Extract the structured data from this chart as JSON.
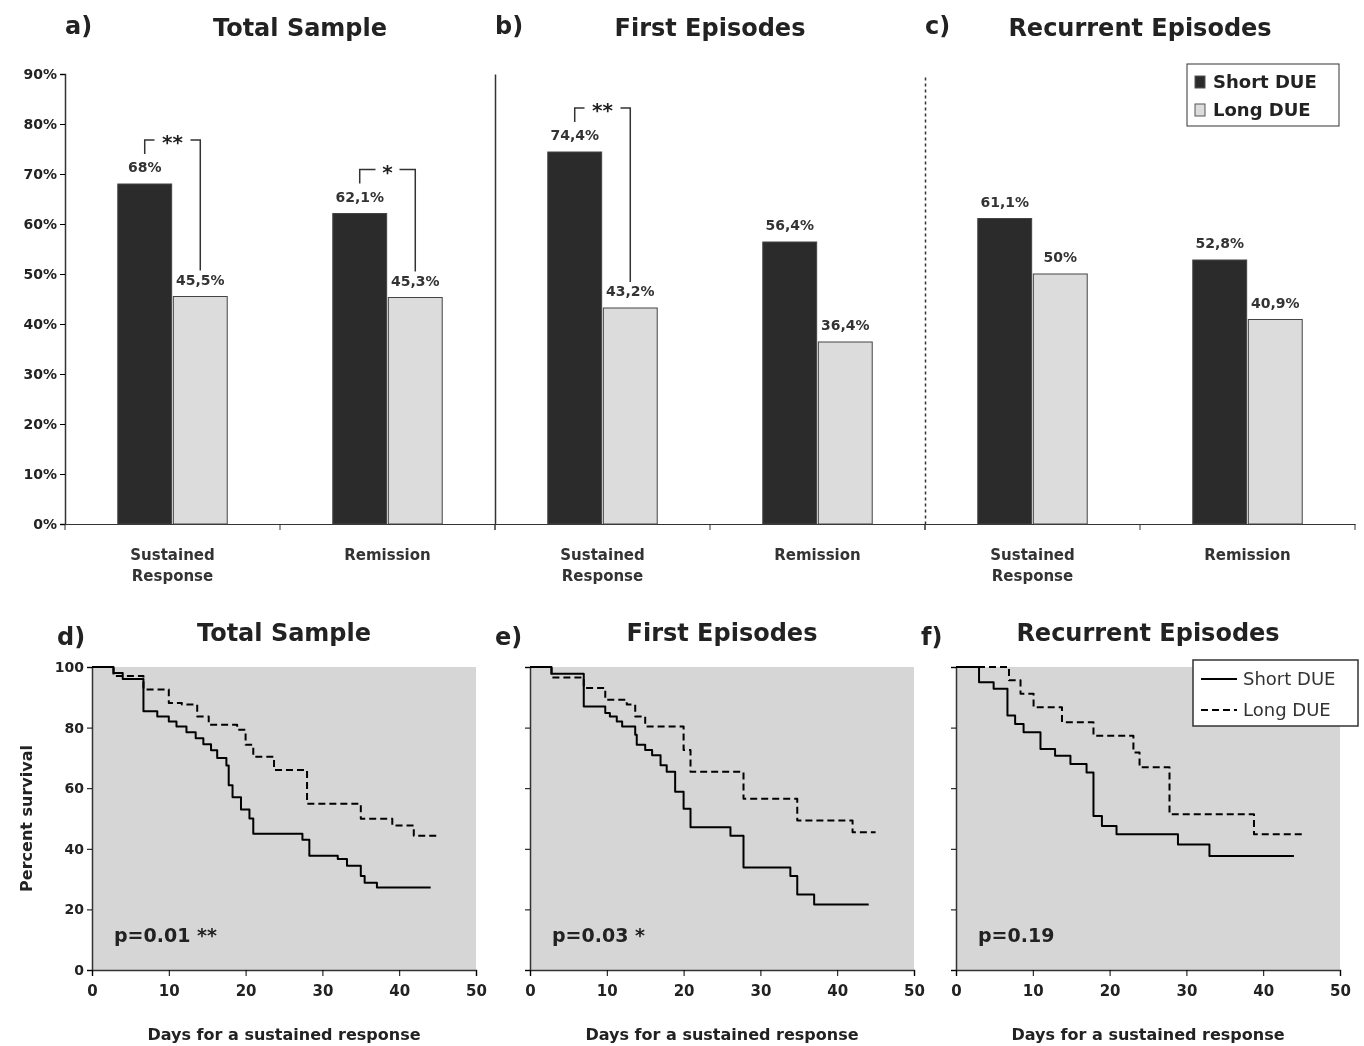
{
  "chart_data": [
    {
      "type": "bar",
      "title": "Total Sample",
      "categories": [
        "Sustained Response",
        "Remission"
      ],
      "series": [
        {
          "color": "#2b2b2b",
          "values": [
            68,
            62.1
          ],
          "value_labels": [
            "68%",
            "62,1%"
          ]
        },
        {
          "color": "#dcdcdc",
          "values": [
            45.5,
            45.3
          ],
          "value_labels": [
            "45,5%",
            "45,3%"
          ]
        }
      ],
      "ylim": [
        0,
        90
      ],
      "yticks": [
        {
          "value": 0,
          "label": "0%"
        },
        {
          "value": 10,
          "label": "10%"
        },
        {
          "value": 20,
          "label": "20%"
        },
        {
          "value": 30,
          "label": "30%"
        },
        {
          "value": 40,
          "label": "40%"
        },
        {
          "value": 50,
          "label": "50%"
        },
        {
          "value": 60,
          "label": "60%"
        },
        {
          "value": 70,
          "label": "70%"
        },
        {
          "value": 80,
          "label": "80%"
        },
        {
          "value": 90,
          "label": "90%"
        }
      ],
      "annotations": [
        "a)",
        "**",
        "*"
      ]
    },
    {
      "type": "bar",
      "title": "First Episodes",
      "categories": [
        "Sustained Response",
        "Remission"
      ],
      "series": [
        {
          "color": "#2b2b2b",
          "values": [
            74.4,
            56.4
          ],
          "value_labels": [
            "74,4%",
            "56,4%"
          ]
        },
        {
          "color": "#dcdcdc",
          "values": [
            43.2,
            36.4
          ],
          "value_labels": [
            "43,2%",
            "36,4%"
          ]
        }
      ],
      "ylim": [
        0,
        90
      ],
      "tick_labels": "x",
      "annotations": [
        "b)",
        "**"
      ]
    },
    {
      "type": "bar",
      "title": "Recurrent Episodes",
      "categories": [
        "Sustained Response",
        "Remission"
      ],
      "series": [
        {
          "name": "Short DUE",
          "color": "#2b2b2b",
          "values": [
            61.1,
            52.8
          ],
          "value_labels": [
            "61,1%",
            "52,8%"
          ]
        },
        {
          "name": "Long DUE",
          "color": "#dcdcdc",
          "values": [
            50,
            40.9
          ],
          "value_labels": [
            "50%",
            "40,9%"
          ]
        }
      ],
      "ylim": [
        0,
        90
      ],
      "tick_labels": "x",
      "legend": "top right",
      "annotations": [
        "c)"
      ]
    },
    {
      "type": "step",
      "title": "Total Sample",
      "xlabel": "Days for a sustained response",
      "ylabel": "Percent survival",
      "series": [
        {
          "color": "#000000",
          "line_style": "solid",
          "x": [
            0,
            2.8,
            4,
            6.7,
            8.5,
            10,
            11,
            12.3,
            13.5,
            14.5,
            15.5,
            16.3,
            17.5,
            17.8,
            18.3,
            19.4,
            20.5,
            21,
            27.4,
            28.3,
            32,
            33.2,
            35,
            35.5,
            37.1,
            44.1
          ],
          "values": [
            100,
            98,
            96,
            85.4,
            83.7,
            82,
            80.4,
            78.5,
            76.5,
            74.5,
            72.5,
            70,
            67.5,
            61,
            57,
            53,
            50,
            45,
            43,
            37.7,
            36.6,
            34.4,
            31,
            28.8,
            27.2,
            27.2
          ]
        },
        {
          "color": "#000000",
          "line_style": "dashed",
          "x": [
            0,
            2.8,
            6.7,
            10,
            11.7,
            13.7,
            15.2,
            18.9,
            20,
            21,
            23.7,
            28,
            35,
            39.1,
            41.9,
            45
          ],
          "values": [
            100,
            97,
            92.6,
            88.1,
            87.6,
            83.7,
            80.9,
            79.3,
            74.3,
            70.4,
            66,
            54.9,
            49.9,
            47.7,
            44.3,
            44.3
          ]
        }
      ],
      "xlim": [
        0,
        50
      ],
      "xticks": [
        0,
        10,
        20,
        30,
        40,
        50
      ],
      "ylim": [
        0,
        100
      ],
      "yticks": [
        0,
        20,
        40,
        60,
        80,
        100
      ],
      "marker": "none",
      "annotations": [
        "d)",
        "p=0.01 **"
      ]
    },
    {
      "type": "step",
      "title": "First Episodes",
      "xlabel": "Days for a sustained response",
      "series": [
        {
          "color": "#000000",
          "line_style": "solid",
          "x": [
            0,
            2.8,
            7,
            9.8,
            10.4,
            11.3,
            12,
            13.7,
            13.9,
            15,
            15.9,
            17,
            17.8,
            18.9,
            20,
            20.9,
            26.1,
            27.8,
            33.9,
            34.8,
            37,
            44.1
          ],
          "values": [
            100,
            97.8,
            87,
            84.8,
            83.7,
            82,
            80.4,
            77.6,
            74.3,
            72.6,
            70.9,
            67.6,
            65.4,
            58.8,
            53.2,
            47.1,
            44.3,
            33.8,
            31,
            24.9,
            21.6,
            21.6
          ]
        },
        {
          "color": "#000000",
          "line_style": "dashed",
          "x": [
            0,
            2.8,
            7,
            9.8,
            12.6,
            13.7,
            15,
            20,
            20.9,
            27.8,
            34.8,
            42,
            45
          ],
          "values": [
            100,
            96.5,
            93.1,
            89.2,
            87.6,
            83.7,
            80.4,
            72.6,
            65.4,
            56.5,
            49.3,
            45.5,
            45.5
          ]
        }
      ],
      "xlim": [
        0,
        50
      ],
      "xticks": [
        0,
        10,
        20,
        30,
        40,
        50
      ],
      "ylim": [
        0,
        100
      ],
      "yticks": [
        0,
        20,
        40,
        60,
        80,
        100
      ],
      "tick_labels": "x",
      "marker": "none",
      "annotations": [
        "e)",
        "p=0.03 *"
      ]
    },
    {
      "type": "step",
      "title": "Recurrent Episodes",
      "xlabel": "Days for a sustained response",
      "series": [
        {
          "name": "Short DUE",
          "color": "#000000",
          "line_style": "solid",
          "x": [
            0,
            3,
            4.9,
            6.7,
            7.7,
            8.8,
            11,
            12.9,
            14.9,
            17,
            17.9,
            19,
            20.9,
            28.9,
            33,
            44
          ],
          "values": [
            100,
            95,
            92.8,
            84,
            81.2,
            78.5,
            72.9,
            70.7,
            68,
            65.2,
            50.8,
            47.5,
            44.8,
            41.4,
            37.6,
            37.6
          ]
        },
        {
          "name": "Long DUE",
          "color": "#000000",
          "line_style": "dashed",
          "x": [
            0,
            6.9,
            8.4,
            10.1,
            13.8,
            17.9,
            23.1,
            23.9,
            27.8,
            38.8,
            45.1
          ],
          "values": [
            100,
            95.6,
            91.2,
            86.7,
            81.8,
            77.3,
            71.8,
            66.9,
            51.4,
            44.8,
            44.8
          ]
        }
      ],
      "xlim": [
        0,
        50
      ],
      "xticks": [
        0,
        10,
        20,
        30,
        40,
        50
      ],
      "ylim": [
        0,
        100
      ],
      "yticks": [
        0,
        20,
        40,
        60,
        80,
        100
      ],
      "tick_labels": "x",
      "marker": "none",
      "legend": "top right",
      "annotations": [
        "f)",
        "p=0.19"
      ]
    }
  ]
}
